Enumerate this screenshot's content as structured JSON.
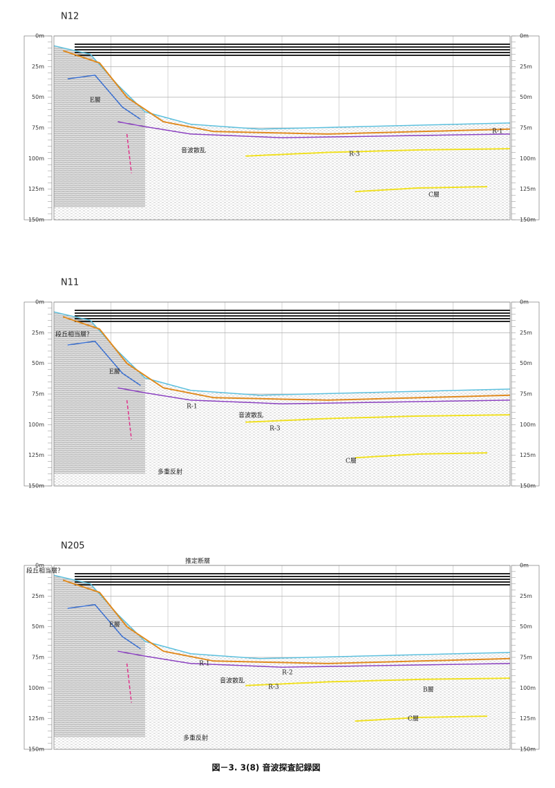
{
  "depth_labels": [
    "0m",
    "25m",
    "50m",
    "75m",
    "100m",
    "125m",
    "150m"
  ],
  "panels": [
    {
      "title": "N12",
      "annotations": [
        "E層",
        "音波散乱",
        "R-1",
        "R-3",
        "C層"
      ]
    },
    {
      "title": "N11",
      "annotations": [
        "段丘相当層？",
        "E層",
        "R-1",
        "音波散乱",
        "R-3",
        "C層",
        "多重反射"
      ]
    },
    {
      "title": "N205",
      "annotations": [
        "推定断層",
        "段丘相当層？",
        "E層",
        "R-1",
        "音波散乱",
        "R-2",
        "R-3",
        "B層",
        "C層",
        "多重反射"
      ]
    }
  ],
  "caption": "図－3. 3(8) 音波探査記録図"
}
